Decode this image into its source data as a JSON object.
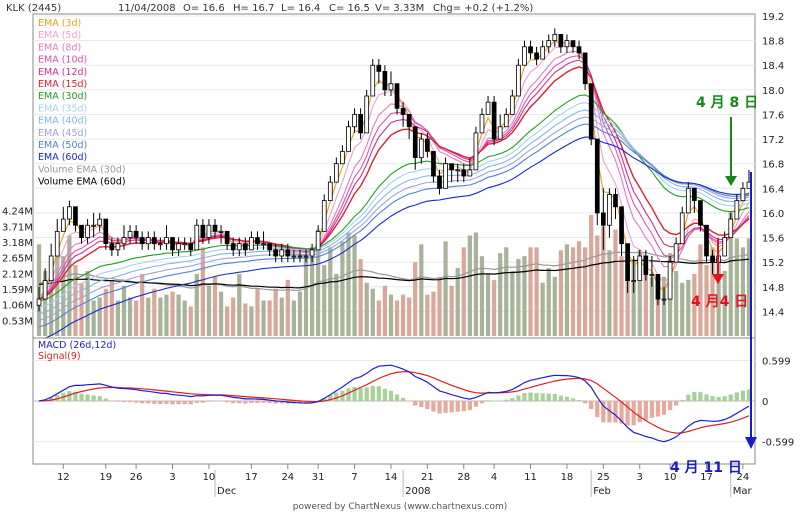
{
  "header": {
    "symbol": "KLK (2445)",
    "date": "11/04/2008",
    "open": "O= 16.6",
    "high": "H= 16.7",
    "low": "L= 16.4",
    "close": "C= 16.5",
    "volume": "V= 3.33M",
    "change": "Chg= +0.2 (+1.2%)"
  },
  "footer": {
    "credit": "powered by ChartNexus (www.chartnexus.com)"
  },
  "colors": {
    "up_candle": "#ffffff",
    "down_candle": "#000000",
    "vol_up": "#a8b39a",
    "vol_down": "#d9a89a",
    "macd": "#1f1fd0",
    "signal": "#e02020",
    "hist_pos": "#a6d29a",
    "hist_neg": "#e8a89c",
    "annotation_green": "#138a13",
    "annotation_red": "#e0141e",
    "annotation_blue": "#1a1acd"
  },
  "chart_data": [
    {
      "type": "candlestick",
      "title": "KLK (2445)",
      "legend": [
        {
          "name": "EMA (3d)",
          "color": "#e8a020"
        },
        {
          "name": "EMA (5d)",
          "color": "#f0a0c8"
        },
        {
          "name": "EMA (8d)",
          "color": "#e878c0"
        },
        {
          "name": "EMA (10d)",
          "color": "#e050b0"
        },
        {
          "name": "EMA (12d)",
          "color": "#d03090"
        },
        {
          "name": "EMA (15d)",
          "color": "#e02030"
        },
        {
          "name": "EMA (30d)",
          "color": "#20a020"
        },
        {
          "name": "EMA (35d)",
          "color": "#a8d0f0"
        },
        {
          "name": "EMA (40d)",
          "color": "#80b8e8"
        },
        {
          "name": "EMA (45d)",
          "color": "#a0a0e0"
        },
        {
          "name": "EMA (50d)",
          "color": "#5080d8"
        },
        {
          "name": "EMA (60d)",
          "color": "#1a2ad0"
        },
        {
          "name": "Volume EMA (30d)",
          "color": "#999999"
        },
        {
          "name": "Volume EMA (60d)",
          "color": "#000000"
        }
      ],
      "y_ticks": [
        19.2,
        18.8,
        18.4,
        18.0,
        17.6,
        17.2,
        16.8,
        16.4,
        16.0,
        15.6,
        15.2,
        14.8,
        14.4
      ],
      "ylim": [
        14.0,
        19.2
      ],
      "volume_ticks": [
        "4.24M",
        "3.71M",
        "3.18M",
        "2.65M",
        "2.12M",
        "1.59M",
        "1.06M",
        "0.53M"
      ],
      "x_tick_labels": [
        "12",
        "19",
        "26",
        "3",
        "10",
        "17",
        "24",
        "31",
        "7",
        "14",
        "21",
        "28",
        "4",
        "11",
        "18",
        "25",
        "3",
        "10",
        "17",
        "24"
      ],
      "month_labels": [
        "Dec",
        "2008",
        "Feb",
        "Mar"
      ],
      "close": [
        14.6,
        14.9,
        15.3,
        15.7,
        15.9,
        16.1,
        15.8,
        15.6,
        15.8,
        15.8,
        15.9,
        15.5,
        15.4,
        15.5,
        15.6,
        15.7,
        15.6,
        15.5,
        15.6,
        15.5,
        15.5,
        15.6,
        15.4,
        15.5,
        15.5,
        15.4,
        15.8,
        15.6,
        15.8,
        15.7,
        15.7,
        15.5,
        15.4,
        15.5,
        15.4,
        15.6,
        15.5,
        15.5,
        15.4,
        15.3,
        15.4,
        15.3,
        15.3,
        15.3,
        15.3,
        15.4,
        15.7,
        16.2,
        16.5,
        16.8,
        17.0,
        17.4,
        17.6,
        17.3,
        17.9,
        18.4,
        18.3,
        18.0,
        18.1,
        17.7,
        17.6,
        17.4,
        16.9,
        17.2,
        17.0,
        16.6,
        16.4,
        16.8,
        16.7,
        16.7,
        16.6,
        16.7,
        17.3,
        17.6,
        17.8,
        17.2,
        17.4,
        17.6,
        17.9,
        18.4,
        18.7,
        18.6,
        18.5,
        18.7,
        18.8,
        18.9,
        18.7,
        18.8,
        18.7,
        18.6,
        18.1,
        17.2,
        16.0,
        15.8,
        16.3,
        16.1,
        15.5,
        14.9,
        14.9,
        15.3,
        15.0,
        15.0,
        14.6,
        14.6,
        15.2,
        15.5,
        16.0,
        16.4,
        16.2,
        15.8,
        15.3,
        15.2,
        15.3,
        15.6,
        15.9,
        16.2,
        16.4,
        16.5
      ],
      "hi": [
        14.8,
        15.1,
        15.5,
        15.9,
        16.1,
        16.2,
        16.1,
        15.8,
        15.9,
        16.0,
        16.0,
        15.8,
        15.6,
        15.6,
        15.8,
        15.8,
        15.8,
        15.7,
        15.7,
        15.7,
        15.6,
        15.8,
        15.6,
        15.6,
        15.6,
        15.6,
        15.9,
        15.9,
        15.9,
        15.9,
        15.8,
        15.7,
        15.6,
        15.6,
        15.6,
        15.7,
        15.7,
        15.7,
        15.5,
        15.5,
        15.5,
        15.5,
        15.4,
        15.4,
        15.4,
        15.5,
        15.8,
        16.3,
        16.6,
        16.9,
        17.1,
        17.5,
        17.7,
        17.7,
        18.0,
        18.5,
        18.5,
        18.4,
        18.3,
        18.1,
        17.8,
        17.6,
        17.4,
        17.3,
        17.3,
        17.0,
        16.7,
        16.9,
        16.8,
        16.8,
        16.8,
        16.9,
        17.4,
        17.7,
        17.9,
        17.9,
        17.6,
        17.7,
        18.0,
        18.5,
        18.8,
        18.8,
        18.7,
        18.8,
        18.9,
        19.0,
        18.9,
        18.9,
        18.8,
        18.8,
        18.6,
        18.1,
        17.2,
        16.4,
        16.4,
        16.4,
        16.1,
        15.5,
        15.3,
        15.4,
        15.4,
        15.3,
        15.0,
        14.8,
        15.3,
        15.6,
        16.1,
        16.5,
        16.4,
        16.2,
        15.8,
        15.4,
        15.4,
        15.7,
        16.0,
        16.3,
        16.5,
        16.7
      ],
      "lo": [
        14.4,
        14.6,
        14.9,
        15.3,
        15.7,
        15.8,
        15.7,
        15.5,
        15.5,
        15.6,
        15.7,
        15.4,
        15.3,
        15.3,
        15.4,
        15.5,
        15.5,
        15.4,
        15.4,
        15.4,
        15.4,
        15.4,
        15.3,
        15.3,
        15.4,
        15.3,
        15.4,
        15.5,
        15.5,
        15.6,
        15.5,
        15.4,
        15.3,
        15.3,
        15.3,
        15.4,
        15.4,
        15.4,
        15.3,
        15.2,
        15.2,
        15.2,
        15.2,
        15.2,
        15.2,
        15.2,
        15.4,
        15.7,
        16.2,
        16.5,
        16.8,
        17.0,
        17.3,
        17.2,
        17.3,
        17.9,
        18.1,
        17.9,
        17.9,
        17.6,
        17.4,
        17.2,
        16.7,
        16.8,
        16.9,
        16.5,
        16.3,
        16.4,
        16.5,
        16.5,
        16.5,
        16.6,
        16.7,
        17.3,
        17.6,
        17.1,
        17.2,
        17.4,
        17.6,
        17.9,
        18.4,
        18.5,
        18.4,
        18.5,
        18.6,
        18.7,
        18.6,
        18.6,
        18.6,
        18.5,
        18.0,
        17.1,
        15.8,
        15.4,
        15.6,
        15.9,
        15.3,
        14.7,
        14.7,
        14.9,
        14.9,
        14.8,
        14.5,
        14.5,
        14.7,
        15.2,
        15.5,
        16.0,
        16.0,
        15.7,
        15.2,
        15.0,
        15.2,
        15.3,
        15.6,
        15.9,
        16.2,
        16.4
      ],
      "volume_millions": [
        3.1,
        2.2,
        2.5,
        3.0,
        2.7,
        3.4,
        2.4,
        1.8,
        2.2,
        1.2,
        1.3,
        1.6,
        1.9,
        1.2,
        1.7,
        1.3,
        1.2,
        2.1,
        1.3,
        1.6,
        1.3,
        1.4,
        1.5,
        1.4,
        1.2,
        1.0,
        2.1,
        3.0,
        1.7,
        2.0,
        1.5,
        1.0,
        1.3,
        2.1,
        1.1,
        1.0,
        1.6,
        1.2,
        1.2,
        1.6,
        1.3,
        1.9,
        1.2,
        1.5,
        2.7,
        3.0,
        3.6,
        2.4,
        3.0,
        2.1,
        3.2,
        3.5,
        3.4,
        2.6,
        1.8,
        1.6,
        1.2,
        1.7,
        1.4,
        1.2,
        1.4,
        1.3,
        2.5,
        3.1,
        1.4,
        1.5,
        2.0,
        3.2,
        1.7,
        2.3,
        3.0,
        3.4,
        3.5,
        2.7,
        2.1,
        1.9,
        2.8,
        3.0,
        2.2,
        2.6,
        2.7,
        3.0,
        3.0,
        1.8,
        2.3,
        2.0,
        2.9,
        3.1,
        3.0,
        3.2,
        3.0,
        4.1,
        3.4,
        3.7,
        2.9,
        3.6,
        2.7,
        3.0,
        2.6,
        2.9,
        2.7,
        2.0,
        2.1,
        2.0,
        2.8,
        2.2,
        1.8,
        1.9,
        2.1,
        3.1,
        2.4,
        3.0,
        2.5,
        2.2,
        4.2,
        3.3,
        3.0,
        3.3
      ],
      "annotations": [
        {
          "text": "4 月 8 日",
          "color": "#138a13"
        },
        {
          "text": "4 月4 日",
          "color": "#e0141e"
        },
        {
          "text": "4 月 11 日",
          "color": "#1a1acd"
        }
      ]
    },
    {
      "type": "line",
      "title": "MACD (26d,12d)",
      "series": [
        {
          "name": "MACD (26d,12d)",
          "color": "#1f1fd0"
        },
        {
          "name": "Signal(9)",
          "color": "#e02020"
        }
      ],
      "y_ticks": [
        0.599,
        0,
        -0.599
      ],
      "ylim": [
        -0.9,
        0.9
      ]
    }
  ]
}
